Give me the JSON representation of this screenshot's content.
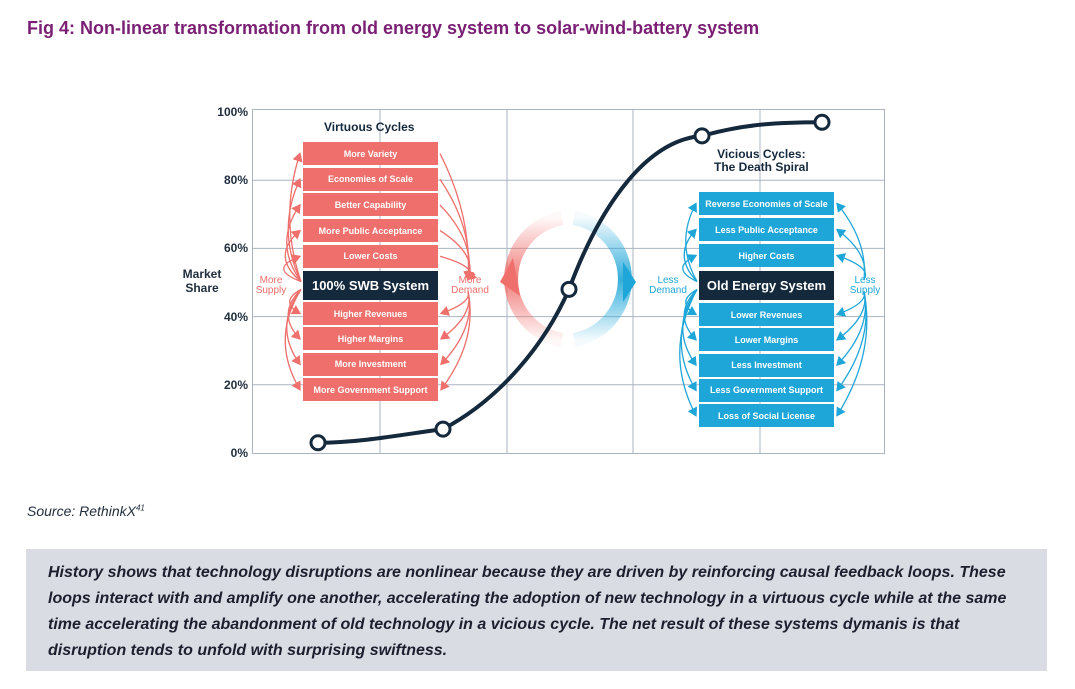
{
  "figure": {
    "title": "Fig 4: Non-linear transformation from old energy system to solar-wind-battery system"
  },
  "chart_data": {
    "type": "line",
    "ylabel": "Market Share",
    "yticks": [
      "100%",
      "80%",
      "60%",
      "40%",
      "20%",
      "0%"
    ],
    "ylim": [
      0,
      100
    ],
    "series": [
      {
        "values": [
          [
            0,
            3
          ],
          [
            1,
            7
          ],
          [
            2,
            48
          ],
          [
            3,
            93
          ],
          [
            4,
            97
          ]
        ]
      }
    ]
  },
  "virtuous": {
    "heading": "Virtuous Cycles",
    "top_items": [
      "More Variety",
      "Economies of Scale",
      "Better Capability",
      "More Public Acceptance",
      "Lower Costs"
    ],
    "center": "100% SWB System",
    "bottom_items": [
      "Higher Revenues",
      "Higher Margins",
      "More Investment",
      "More Government Support"
    ],
    "left_label": "More\nSupply",
    "right_label": "More\nDemand"
  },
  "vicious": {
    "heading": "Vicious Cycles:\nThe Death Spiral",
    "top_items": [
      "Reverse Economies of Scale",
      "Less Public Acceptance",
      "Higher Costs"
    ],
    "center": "Old Energy System",
    "bottom_items": [
      "Lower Revenues",
      "Lower Margins",
      "Less Investment",
      "Less Government Support",
      "Loss of Social License"
    ],
    "left_label": "Less\nDemand",
    "right_label": "Less\nSupply"
  },
  "source": {
    "text": "Source: RethinkX",
    "sup": "41"
  },
  "callout": {
    "text": "History shows that technology disruptions are nonlinear because they are driven by reinforcing causal feedback loops. These loops interact with and amplify one another, accelerating the adoption of new technology in a virtuous cycle while at the same time accelerating the abandonment of old technology in a vicious cycle. The net result of these systems dymanis is that disruption tends to unfold with surprising swiftness."
  },
  "colors": {
    "title": "#7a1f74",
    "virtuous": "#ee6f6b",
    "vicious": "#1fa6d8",
    "dark": "#15293d"
  }
}
